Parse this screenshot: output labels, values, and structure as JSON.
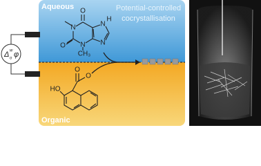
{
  "labels": {
    "aqueous": "Aqueous",
    "organic": "Organic",
    "caption": [
      "Potential-controlled",
      "cocrystallisation"
    ]
  },
  "potential": {
    "delta": "Δ",
    "sup": "w",
    "sub": "o",
    "phi": "φ"
  },
  "molecule_top": {
    "atoms": [
      "O",
      "N",
      "O",
      "N",
      "CH₃",
      "N",
      "H",
      "N"
    ]
  },
  "molecule_bottom": {
    "atoms": [
      "O",
      "O",
      "HO"
    ]
  }
}
